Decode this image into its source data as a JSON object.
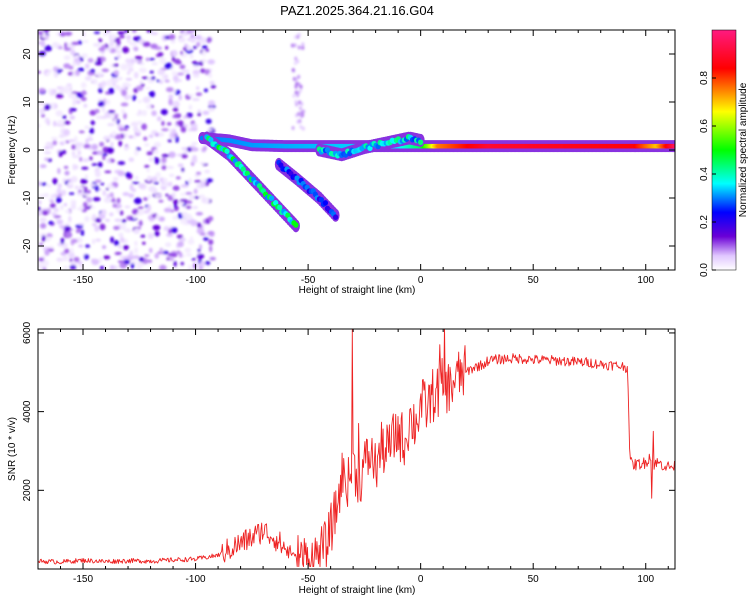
{
  "figure": {
    "title": "PAZ1.2025.364.21.16.G04"
  },
  "chart_data": [
    {
      "type": "heatmap",
      "title": "PAZ1.2025.364.21.16.G04",
      "xlabel": "Height of straight line (km)",
      "ylabel": "Frequency (Hz)",
      "xlim": [
        -170,
        113
      ],
      "ylim": [
        -25,
        25
      ],
      "xticks": [
        -150,
        -100,
        -50,
        0,
        50,
        100
      ],
      "yticks": [
        -20,
        -10,
        0,
        10,
        20
      ],
      "colorbar": {
        "label": "Normalized spectral amplitude",
        "range": [
          0,
          1
        ],
        "ticks": [
          "0.0",
          "0.2",
          "0.4",
          "0.6",
          "0.8"
        ],
        "tick_values": [
          0.0,
          0.2,
          0.4,
          0.6,
          0.8
        ],
        "colormap_stops": [
          "#ffffff",
          "#6600cc",
          "#0000ff",
          "#00ffff",
          "#00ff00",
          "#ffff00",
          "#ff0000",
          "#ff0080"
        ]
      },
      "noise_region": {
        "x_range": [
          -170,
          -100
        ],
        "freq_range": [
          -25,
          25
        ],
        "amplitude": "low (0.0-0.2)"
      },
      "features": [
        {
          "name": "main-carrier",
          "points": [
            [
              -97,
              2.5
            ],
            [
              -85,
              2.0
            ],
            [
              -75,
              1.0
            ],
            [
              -60,
              0.8
            ],
            [
              5,
              0.8
            ],
            [
              30,
              0.8
            ],
            [
              100,
              0.8
            ],
            [
              113,
              0.8
            ]
          ],
          "amplitude_by_x": [
            [
              -97,
              0.3
            ],
            [
              -10,
              0.35
            ],
            [
              0,
              0.45
            ],
            [
              8,
              0.75
            ],
            [
              30,
              0.9
            ],
            [
              95,
              0.85
            ],
            [
              105,
              0.7
            ],
            [
              113,
              0.95
            ]
          ]
        },
        {
          "name": "descending-track-a",
          "points": [
            [
              -95,
              2.5
            ],
            [
              -85,
              -1
            ],
            [
              -75,
              -6
            ],
            [
              -65,
              -11
            ],
            [
              -55,
              -16
            ]
          ],
          "amplitude": 0.4
        },
        {
          "name": "descending-track-b",
          "points": [
            [
              -63,
              -3
            ],
            [
              -55,
              -6
            ],
            [
              -45,
              -10
            ],
            [
              -37,
              -14
            ]
          ],
          "amplitude": 0.25
        },
        {
          "name": "rising-track",
          "points": [
            [
              -45,
              0
            ],
            [
              -35,
              -1
            ],
            [
              -25,
              0.5
            ],
            [
              -15,
              1.5
            ],
            [
              -5,
              2.5
            ],
            [
              0,
              2.0
            ]
          ],
          "amplitude": 0.35
        }
      ]
    },
    {
      "type": "line",
      "title": "",
      "xlabel": "Height of straight line (km)",
      "ylabel": "SNR (10 * v/v)",
      "xlim": [
        -170,
        113
      ],
      "ylim": [
        0,
        6100
      ],
      "xticks": [
        -150,
        -100,
        -50,
        0,
        50,
        100
      ],
      "yticks": [
        2000,
        4000,
        6000
      ],
      "series": [
        {
          "name": "SNR",
          "color": "#ee2222",
          "x": [
            -170,
            -160,
            -150,
            -140,
            -130,
            -120,
            -110,
            -100,
            -95,
            -90,
            -85,
            -80,
            -75,
            -72,
            -70,
            -68,
            -65,
            -60,
            -55,
            -50,
            -47,
            -45,
            -42,
            -40,
            -37,
            -35,
            -32,
            -30,
            -27,
            -25,
            -22,
            -20,
            -17,
            -15,
            -12,
            -10,
            -7,
            -5,
            -2,
            0,
            3,
            5,
            8,
            10,
            13,
            15,
            18,
            20,
            23,
            25,
            28,
            30,
            35,
            40,
            45,
            50,
            55,
            60,
            65,
            70,
            75,
            80,
            85,
            90,
            92,
            93,
            95,
            100,
            102,
            103,
            105,
            110,
            113
          ],
          "y": [
            200,
            180,
            220,
            190,
            210,
            200,
            230,
            250,
            300,
            350,
            500,
            650,
            800,
            900,
            1000,
            900,
            800,
            500,
            300,
            250,
            300,
            400,
            600,
            1000,
            1600,
            2400,
            2200,
            2600,
            2200,
            2700,
            2900,
            2600,
            3100,
            3000,
            3300,
            3500,
            3200,
            3800,
            3700,
            4200,
            4100,
            4400,
            4500,
            4700,
            4600,
            4800,
            4950,
            5000,
            5100,
            5150,
            5200,
            5300,
            5330,
            5350,
            5350,
            5320,
            5310,
            5300,
            5280,
            5260,
            5250,
            5200,
            5180,
            5150,
            5100,
            2700,
            2650,
            2700,
            2900,
            2650,
            2700,
            2600,
            2600
          ],
          "spikes": [
            {
              "x": -30.5,
              "y": 6100
            },
            {
              "x": -27.5,
              "y": 3700
            },
            {
              "x": 8.5,
              "y": 5700
            },
            {
              "x": 10.5,
              "y": 6200
            },
            {
              "x": 102.5,
              "y": 1800
            },
            {
              "x": 103.5,
              "y": 3500
            }
          ]
        }
      ]
    }
  ]
}
